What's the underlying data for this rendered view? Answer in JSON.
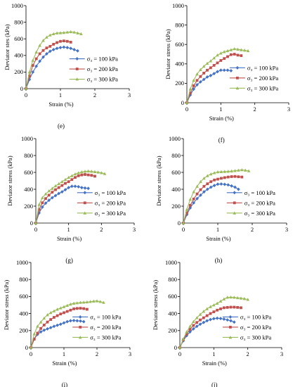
{
  "colors": {
    "s100": "#4472C4",
    "s200": "#C0504D",
    "s300": "#9BBB59",
    "axis": "#000000"
  },
  "chart_data": [
    {
      "type": "line",
      "panel_label": "(e)",
      "ylabel": "Deviator stes (kPa)",
      "xlabel": "Strain (%)",
      "xlim": [
        0,
        3
      ],
      "ylim": [
        0,
        1000
      ],
      "xticks": [
        "0",
        "1",
        "2",
        "3"
      ],
      "yticks": [
        "0",
        "200",
        "400",
        "600",
        "800",
        "1000"
      ],
      "grid": false,
      "legend_position": "right-center",
      "series": [
        {
          "name": "σ₃ = 100 kPa",
          "x": [
            0,
            0.1,
            0.2,
            0.3,
            0.4,
            0.5,
            0.6,
            0.7,
            0.8,
            0.9,
            1.0,
            1.1,
            1.2,
            1.3,
            1.4,
            1.5
          ],
          "y": [
            0,
            110,
            200,
            270,
            330,
            380,
            420,
            450,
            470,
            485,
            495,
            500,
            495,
            485,
            470,
            455
          ]
        },
        {
          "name": "σ₃ = 200 kPa",
          "x": [
            0,
            0.1,
            0.2,
            0.3,
            0.4,
            0.5,
            0.6,
            0.7,
            0.8,
            0.9,
            1.0,
            1.1,
            1.2,
            1.3
          ],
          "y": [
            0,
            150,
            280,
            360,
            420,
            460,
            490,
            510,
            535,
            555,
            570,
            575,
            570,
            560
          ]
        },
        {
          "name": "σ₃ = 300 kPa",
          "x": [
            0,
            0.1,
            0.2,
            0.3,
            0.4,
            0.5,
            0.6,
            0.7,
            0.8,
            0.9,
            1.0,
            1.1,
            1.2,
            1.3,
            1.4,
            1.5,
            1.6
          ],
          "y": [
            0,
            200,
            340,
            440,
            520,
            580,
            620,
            645,
            660,
            670,
            672,
            675,
            680,
            685,
            680,
            670,
            660
          ]
        }
      ]
    },
    {
      "type": "line",
      "panel_label": "(f)",
      "ylabel": "Deviator stress (kPa)",
      "xlabel": "Strain (%)",
      "xlim": [
        0,
        3
      ],
      "ylim": [
        0,
        1000
      ],
      "xticks": [
        "0",
        "1",
        "2",
        "3"
      ],
      "yticks": [
        "0",
        "200",
        "400",
        "600",
        "800",
        "1000"
      ],
      "grid": false,
      "legend_position": "right-center",
      "series": [
        {
          "name": "σ₃ = 100 kPa",
          "x": [
            0,
            0.1,
            0.2,
            0.3,
            0.4,
            0.5,
            0.6,
            0.7,
            0.8,
            0.9,
            1.0,
            1.1,
            1.2,
            1.3
          ],
          "y": [
            0,
            80,
            140,
            185,
            215,
            240,
            265,
            280,
            300,
            320,
            335,
            335,
            335,
            330
          ]
        },
        {
          "name": "σ₃ = 200 kPa",
          "x": [
            0,
            0.1,
            0.2,
            0.3,
            0.4,
            0.5,
            0.6,
            0.7,
            0.8,
            0.9,
            1.0,
            1.1,
            1.2,
            1.3,
            1.4,
            1.5,
            1.6
          ],
          "y": [
            0,
            100,
            175,
            230,
            270,
            305,
            335,
            360,
            385,
            410,
            435,
            455,
            475,
            495,
            500,
            490,
            485
          ]
        },
        {
          "name": "σ₃ = 300 kPa",
          "x": [
            0,
            0.1,
            0.2,
            0.3,
            0.4,
            0.5,
            0.6,
            0.7,
            0.8,
            0.9,
            1.0,
            1.1,
            1.2,
            1.3,
            1.4,
            1.5,
            1.6,
            1.7,
            1.8
          ],
          "y": [
            0,
            140,
            230,
            295,
            340,
            375,
            405,
            430,
            460,
            490,
            510,
            525,
            535,
            545,
            555,
            550,
            545,
            540,
            535
          ]
        }
      ]
    },
    {
      "type": "line",
      "panel_label": "(g)",
      "ylabel": "Deviator stress (kPa)",
      "xlabel": "Strain (%)",
      "xlim": [
        0,
        3
      ],
      "ylim": [
        0,
        1000
      ],
      "xticks": [
        "0",
        "1",
        "2",
        "3"
      ],
      "yticks": [
        "0",
        "200",
        "400",
        "600",
        "800",
        "1000"
      ],
      "grid": false,
      "legend_position": "right-center",
      "series": [
        {
          "name": "σ₃ = 100 kPa",
          "x": [
            0,
            0.1,
            0.2,
            0.3,
            0.4,
            0.5,
            0.6,
            0.7,
            0.8,
            0.9,
            1.0,
            1.1,
            1.2,
            1.3,
            1.4,
            1.5,
            1.6
          ],
          "y": [
            0,
            120,
            190,
            235,
            270,
            300,
            325,
            350,
            370,
            395,
            420,
            435,
            435,
            430,
            420,
            415,
            410
          ]
        },
        {
          "name": "σ₃ = 200 kPa",
          "x": [
            0,
            0.1,
            0.2,
            0.3,
            0.4,
            0.5,
            0.6,
            0.7,
            0.8,
            0.9,
            1.0,
            1.1,
            1.2,
            1.3,
            1.4,
            1.5,
            1.6,
            1.7,
            1.8
          ],
          "y": [
            0,
            160,
            240,
            290,
            330,
            365,
            395,
            420,
            445,
            470,
            490,
            515,
            540,
            560,
            570,
            575,
            570,
            565,
            555
          ]
        },
        {
          "name": "σ₃ = 300 kPa",
          "x": [
            0,
            0.1,
            0.2,
            0.3,
            0.4,
            0.5,
            0.6,
            0.7,
            0.8,
            0.9,
            1.0,
            1.1,
            1.2,
            1.3,
            1.4,
            1.5,
            1.6,
            1.7,
            1.8,
            1.9,
            2.0,
            2.1
          ],
          "y": [
            0,
            220,
            300,
            345,
            380,
            410,
            440,
            465,
            490,
            515,
            540,
            560,
            580,
            595,
            605,
            612,
            615,
            612,
            608,
            602,
            595,
            585
          ]
        }
      ]
    },
    {
      "type": "line",
      "panel_label": "(h)",
      "ylabel": "Deviator stress (kPa)",
      "xlabel": "Strain (%)",
      "xlim": [
        0,
        3
      ],
      "ylim": [
        0,
        1000
      ],
      "xticks": [
        "0",
        "1",
        "2",
        "3"
      ],
      "yticks": [
        "0",
        "200",
        "400",
        "600",
        "800",
        "1000"
      ],
      "grid": false,
      "legend_position": "right-center",
      "series": [
        {
          "name": "σ₃ = 100 kPa",
          "x": [
            0,
            0.1,
            0.2,
            0.3,
            0.4,
            0.5,
            0.6,
            0.7,
            0.8,
            0.9,
            1.0,
            1.1,
            1.2,
            1.3,
            1.4,
            1.5,
            1.6
          ],
          "y": [
            0,
            100,
            180,
            240,
            290,
            330,
            370,
            400,
            425,
            445,
            460,
            462,
            458,
            452,
            440,
            425,
            400
          ]
        },
        {
          "name": "σ₃ = 200 kPa",
          "x": [
            0,
            0.1,
            0.2,
            0.3,
            0.4,
            0.5,
            0.6,
            0.7,
            0.8,
            0.9,
            1.0,
            1.1,
            1.2,
            1.3,
            1.4,
            1.5,
            1.6,
            1.7
          ],
          "y": [
            0,
            120,
            210,
            285,
            345,
            395,
            435,
            465,
            490,
            510,
            520,
            530,
            538,
            545,
            550,
            552,
            548,
            545
          ]
        },
        {
          "name": "σ₃ = 300 kPa",
          "x": [
            0,
            0.1,
            0.2,
            0.3,
            0.4,
            0.5,
            0.6,
            0.7,
            0.8,
            0.9,
            1.0,
            1.1,
            1.2,
            1.3,
            1.4,
            1.5,
            1.6,
            1.7,
            1.8,
            1.9
          ],
          "y": [
            0,
            160,
            280,
            370,
            435,
            490,
            530,
            560,
            580,
            595,
            605,
            608,
            610,
            612,
            615,
            620,
            625,
            630,
            625,
            618
          ]
        }
      ]
    },
    {
      "type": "line",
      "panel_label": "(i)",
      "ylabel": "Deviator stress (kPa)",
      "xlabel": "Strain (%)",
      "xlim": [
        0,
        3
      ],
      "ylim": [
        0,
        1000
      ],
      "xticks": [
        "0",
        "1",
        "2",
        "3"
      ],
      "yticks": [
        "0",
        "200",
        "400",
        "600",
        "800",
        "1000"
      ],
      "grid": false,
      "legend_position": "right-center",
      "series": [
        {
          "name": "σ₃ = 100 kPa",
          "x": [
            0,
            0.1,
            0.2,
            0.3,
            0.4,
            0.5,
            0.6,
            0.7,
            0.8,
            0.9,
            1.0,
            1.1,
            1.2,
            1.3,
            1.4,
            1.5,
            1.6
          ],
          "y": [
            0,
            100,
            155,
            185,
            205,
            220,
            235,
            250,
            262,
            275,
            290,
            305,
            315,
            318,
            315,
            312,
            305
          ]
        },
        {
          "name": "σ₃ = 200 kPa",
          "x": [
            0,
            0.1,
            0.2,
            0.3,
            0.4,
            0.5,
            0.6,
            0.7,
            0.8,
            0.9,
            1.0,
            1.1,
            1.2,
            1.3,
            1.4,
            1.5,
            1.6,
            1.7
          ],
          "y": [
            0,
            100,
            170,
            225,
            265,
            300,
            330,
            355,
            375,
            395,
            410,
            425,
            440,
            455,
            460,
            462,
            458,
            450
          ]
        },
        {
          "name": "σ₃ = 300 kPa",
          "x": [
            0,
            0.1,
            0.2,
            0.3,
            0.4,
            0.5,
            0.6,
            0.7,
            0.8,
            0.9,
            1.0,
            1.1,
            1.2,
            1.3,
            1.4,
            1.5,
            1.6,
            1.7,
            1.8,
            1.9,
            2.0,
            2.1,
            2.2
          ],
          "y": [
            0,
            160,
            250,
            300,
            345,
            385,
            410,
            430,
            450,
            465,
            480,
            495,
            510,
            520,
            525,
            530,
            532,
            535,
            540,
            545,
            548,
            540,
            530
          ]
        }
      ]
    },
    {
      "type": "line",
      "panel_label": "(j)",
      "ylabel": "Deviator stress (kPa)",
      "xlabel": "Strain (%)",
      "xlim": [
        0,
        3
      ],
      "ylim": [
        0,
        1000
      ],
      "xticks": [
        "0",
        "1",
        "2",
        "3"
      ],
      "yticks": [
        "0",
        "200",
        "400",
        "600",
        "800",
        "1000"
      ],
      "grid": false,
      "legend_position": "right-center",
      "series": [
        {
          "name": "σ₃ = 100 kPa",
          "x": [
            0,
            0.1,
            0.2,
            0.3,
            0.4,
            0.5,
            0.6,
            0.7,
            0.8,
            0.9,
            1.0,
            1.1,
            1.2,
            1.3,
            1.4,
            1.5,
            1.6
          ],
          "y": [
            0,
            80,
            140,
            185,
            220,
            250,
            275,
            295,
            315,
            330,
            340,
            345,
            342,
            335,
            325,
            315,
            300
          ]
        },
        {
          "name": "σ₃ = 200 kPa",
          "x": [
            0,
            0.1,
            0.2,
            0.3,
            0.4,
            0.5,
            0.6,
            0.7,
            0.8,
            0.9,
            1.0,
            1.1,
            1.2,
            1.3,
            1.4,
            1.5,
            1.6,
            1.7,
            1.8
          ],
          "y": [
            0,
            90,
            160,
            215,
            260,
            295,
            325,
            350,
            375,
            400,
            420,
            440,
            455,
            468,
            472,
            475,
            475,
            472,
            468
          ]
        },
        {
          "name": "σ₃ = 300 kPa",
          "x": [
            0,
            0.1,
            0.2,
            0.3,
            0.4,
            0.5,
            0.6,
            0.7,
            0.8,
            0.9,
            1.0,
            1.1,
            1.2,
            1.3,
            1.4,
            1.5,
            1.6,
            1.7,
            1.8,
            1.9,
            2.0
          ],
          "y": [
            0,
            100,
            185,
            250,
            305,
            350,
            390,
            425,
            455,
            480,
            500,
            520,
            545,
            570,
            590,
            592,
            590,
            585,
            580,
            575,
            565
          ]
        }
      ]
    }
  ]
}
